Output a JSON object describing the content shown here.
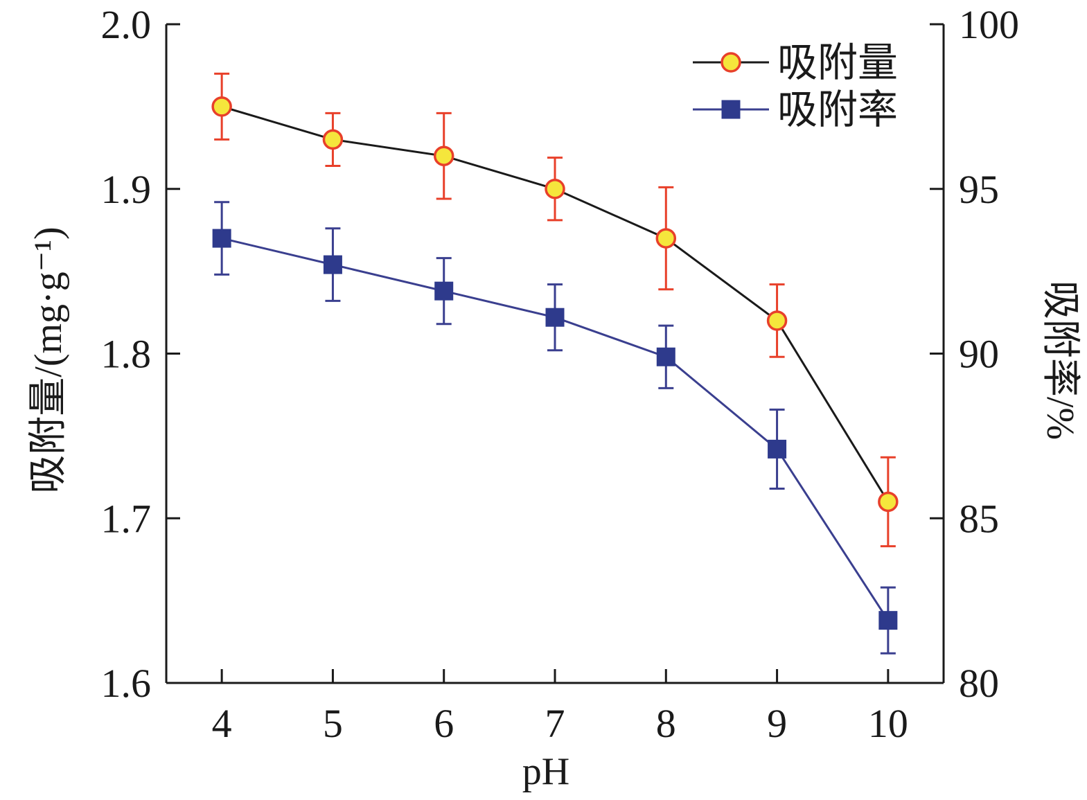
{
  "chart_data": {
    "type": "line",
    "xlabel": "pH",
    "ylabel_left": "吸附量/(mg·g⁻¹)",
    "ylabel_right": "吸附率/%",
    "x": [
      4,
      5,
      6,
      7,
      8,
      9,
      10
    ],
    "x_tick_labels": [
      "4",
      "5",
      "6",
      "7",
      "8",
      "9",
      "10"
    ],
    "xlim": [
      3.5,
      10.5
    ],
    "ylim_left": [
      1.6,
      2.0
    ],
    "ylim_right": [
      80,
      100
    ],
    "y_left_tick_labels": [
      "1.6",
      "1.7",
      "1.8",
      "1.9",
      "2.0"
    ],
    "y_right_tick_labels": [
      "80",
      "85",
      "90",
      "95",
      "100"
    ],
    "legend_position": "top-right",
    "grid": false,
    "series": [
      {
        "name": "吸附量",
        "axis": "left",
        "values": [
          1.95,
          1.93,
          1.92,
          1.9,
          1.87,
          1.82,
          1.71
        ],
        "errors": [
          0.02,
          0.016,
          0.026,
          0.019,
          0.031,
          0.022,
          0.027
        ],
        "line_color": "#1a1a1a",
        "marker": "circle",
        "marker_fill": "#f5e63c",
        "marker_edge": "#e8402a",
        "error_color": "#e8402a"
      },
      {
        "name": "吸附率",
        "axis": "right",
        "values": [
          93.5,
          92.7,
          91.9,
          91.1,
          89.9,
          87.1,
          81.9
        ],
        "errors": [
          1.1,
          1.1,
          1.0,
          1.0,
          0.95,
          1.2,
          1.0
        ],
        "line_color": "#3a3f8f",
        "marker": "square",
        "marker_fill": "#2e3a8c",
        "marker_edge": "#2e3a8c",
        "error_color": "#3a3f8f"
      }
    ]
  }
}
